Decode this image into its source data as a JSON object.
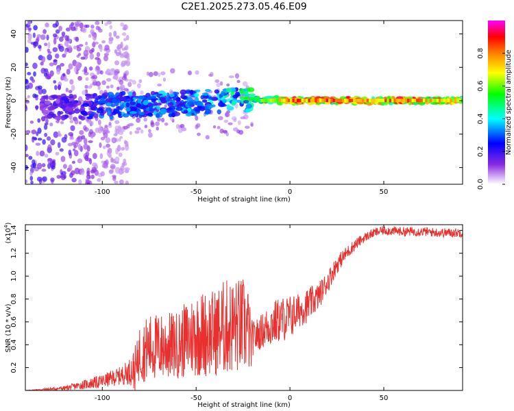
{
  "title": "C2E1.2025.273.05.46.E09",
  "chart_data": [
    {
      "type": "heatmap",
      "xlabel": "Height of straight line (km)",
      "ylabel": "Frequency (Hz)",
      "xlim": [
        -141,
        92
      ],
      "ylim": [
        -50,
        48
      ],
      "x_ticks": [
        -100,
        -50,
        0,
        50
      ],
      "y_ticks": [
        -40,
        -20,
        0,
        20,
        40
      ],
      "colorbar": {
        "label": "Normalized spectral amplitude",
        "range": [
          0,
          1
        ],
        "ticks": [
          0.0,
          0.2,
          0.4,
          0.6,
          0.8
        ],
        "colors": [
          "#ffffff",
          "#8a2be2",
          "#0000ff",
          "#00ffff",
          "#00ff00",
          "#ffff00",
          "#ff8000",
          "#ff0000",
          "#ff00ff"
        ]
      },
      "ridge": {
        "x": [
          -135,
          -120,
          -100,
          -80,
          -60,
          -40,
          -20,
          0,
          20,
          40,
          60,
          80,
          92
        ],
        "y": [
          -4,
          -4,
          -3,
          -2,
          -2,
          0,
          1,
          0,
          0,
          0,
          0,
          0,
          0
        ],
        "amplitude": [
          0.15,
          0.2,
          0.3,
          0.35,
          0.35,
          0.4,
          0.55,
          0.85,
          0.9,
          0.8,
          0.85,
          0.8,
          0.7
        ]
      }
    },
    {
      "type": "line",
      "xlabel": "Height of straight line (km)",
      "ylabel": "SNR (10 * v/v)",
      "multiplier": "(x10^4)",
      "multiplier_base": "(x10",
      "multiplier_exp": "4",
      "multiplier_close": ")",
      "xlim": [
        -141,
        92
      ],
      "ylim": [
        0,
        1.45
      ],
      "x_ticks": [
        -100,
        -50,
        0,
        50
      ],
      "y_ticks": [
        0.2,
        0.4,
        0.6,
        0.8,
        1.0,
        1.2,
        1.4
      ],
      "line_color": "#e8302e",
      "series": [
        {
          "x": [
            -141,
            -130,
            -120,
            -110,
            -100,
            -90,
            -85,
            -80,
            -75,
            -70,
            -65,
            -60,
            -55,
            -50,
            -45,
            -40,
            -35,
            -30,
            -25,
            -22,
            -20,
            -15,
            -10,
            -5,
            0,
            5,
            10,
            15,
            20,
            25,
            30,
            35,
            40,
            45,
            50,
            60,
            70,
            80,
            92
          ],
          "y": [
            0.0,
            0.01,
            0.02,
            0.05,
            0.08,
            0.13,
            0.17,
            0.2,
            0.22,
            0.24,
            0.26,
            0.28,
            0.3,
            0.32,
            0.33,
            0.35,
            0.36,
            0.38,
            0.4,
            0.42,
            0.45,
            0.52,
            0.58,
            0.62,
            0.64,
            0.7,
            0.75,
            0.82,
            0.95,
            1.1,
            1.2,
            1.28,
            1.34,
            1.38,
            1.4,
            1.39,
            1.39,
            1.38,
            1.38
          ],
          "spread": [
            0.0,
            0.01,
            0.02,
            0.04,
            0.06,
            0.08,
            0.12,
            0.3,
            0.35,
            0.35,
            0.35,
            0.35,
            0.4,
            0.45,
            0.45,
            0.45,
            0.5,
            0.5,
            0.5,
            0.45,
            0.15,
            0.15,
            0.2,
            0.2,
            0.2,
            0.15,
            0.15,
            0.12,
            0.1,
            0.08,
            0.06,
            0.05,
            0.04,
            0.04,
            0.04,
            0.04,
            0.04,
            0.04,
            0.04
          ]
        }
      ]
    }
  ]
}
